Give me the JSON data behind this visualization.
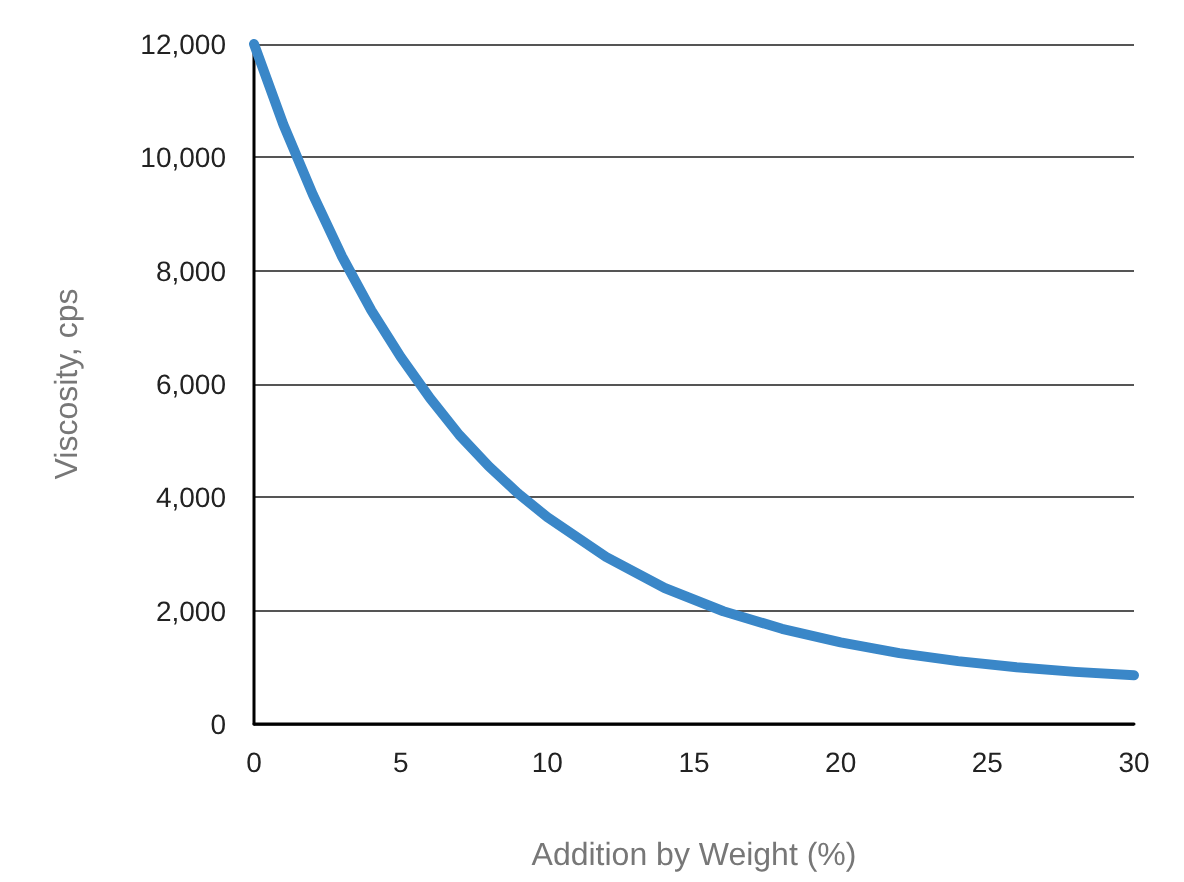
{
  "chart_data": {
    "type": "line",
    "xlabel": "Addition by Weight (%)",
    "ylabel": "Viscosity, cps",
    "x": [
      0,
      1,
      2,
      3,
      4,
      5,
      6,
      7,
      8,
      9,
      10,
      12,
      14,
      16,
      18,
      20,
      22,
      24,
      26,
      28,
      30
    ],
    "series": [
      {
        "color": "#3a87c8",
        "values": [
          12000,
          10580,
          9350,
          8250,
          7300,
          6480,
          5750,
          5100,
          4550,
          4070,
          3650,
          2950,
          2400,
          1990,
          1680,
          1440,
          1250,
          1110,
          1000,
          920,
          860
        ]
      }
    ],
    "xlim": [
      0,
      30
    ],
    "xticks": [
      0,
      5,
      10,
      15,
      20,
      25,
      30
    ],
    "ylim": [
      0,
      12000
    ],
    "yticks": [
      0,
      {
        "value": 2000,
        "label": "2,000"
      },
      {
        "value": 4000,
        "label": "4,000"
      },
      {
        "value": 6000,
        "label": "6,000"
      },
      {
        "value": 8000,
        "label": "8,000"
      },
      {
        "value": 10000,
        "label": "10,000"
      },
      {
        "value": 12000,
        "label": "12,000"
      }
    ],
    "grid": "y",
    "marker": "none",
    "line_style": "solid"
  }
}
